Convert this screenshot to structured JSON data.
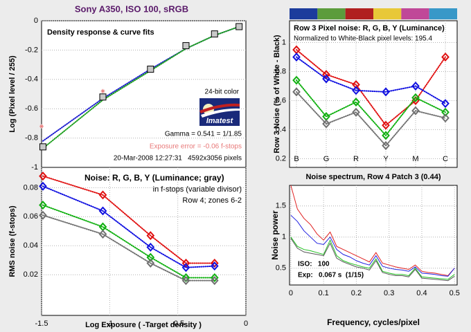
{
  "title": "Sony A350, ISO 100, sRGB",
  "chart_data": [
    {
      "type": "line",
      "title": "Density response & curve fits",
      "ylabel": "Log (Pixel level / 255)",
      "x": [
        -1.49,
        -1.05,
        -0.7,
        -0.44,
        -0.23,
        -0.05
      ],
      "xlim": [
        -1.5,
        0
      ],
      "ylim": [
        -1,
        0
      ],
      "yticks": [
        0,
        -0.2,
        -0.4,
        -0.6,
        -0.8,
        -1
      ],
      "grid": true,
      "annotations": [
        "24-bit color",
        "Gamma = 0.541 = 1/1.85",
        "Exposure error = -0.06 f-stops",
        "20-Mar-2008 12:27:31   4592x3056 pixels"
      ],
      "logo_text": "Imatest",
      "series": [
        {
          "color": "#2020d0",
          "line": "dotted",
          "marker": "none",
          "values": [
            -0.82,
            -0.53,
            -0.33,
            -0.19,
            -0.1,
            -0.04
          ]
        },
        {
          "color": "#20a020",
          "line": "dotted",
          "marker": "none",
          "values": [
            -0.87,
            -0.54,
            -0.34,
            -0.19,
            -0.1,
            -0.04
          ]
        },
        {
          "color": "#e88080",
          "line": "none",
          "marker": "asterisk",
          "x": [
            -1.5,
            -1.05
          ],
          "values": [
            -0.72,
            -0.48
          ]
        },
        {
          "color": "#000000",
          "line": "none",
          "marker": "square",
          "values": [
            -0.86,
            -0.52,
            -0.33,
            -0.17,
            -0.09,
            -0.04
          ]
        }
      ]
    },
    {
      "type": "line",
      "title": "Row 3 Pixel noise: R, G, B, Y (Luminance)",
      "subtitle": "Normalized to White-Black pixel levels: 195.4",
      "ylabel": "Row 3 Noise (% of White - Black)",
      "color_bar": [
        "#1c3c9c",
        "#5c9c3c",
        "#b02020",
        "#e8c838",
        "#c04898",
        "#3898c8"
      ],
      "categories": [
        "B",
        "G",
        "R",
        "Y",
        "M",
        "C"
      ],
      "ylim": [
        0.14,
        1.15
      ],
      "yticks": [
        0.2,
        0.4,
        0.6,
        0.8,
        1
      ],
      "grid": true,
      "series": [
        {
          "color": "#e01010",
          "line": "dotted",
          "marker": "diamond",
          "values": [
            0.95,
            0.78,
            0.71,
            0.43,
            0.6,
            0.9
          ]
        },
        {
          "color": "#1010e0",
          "line": "dotted",
          "marker": "diamond",
          "values": [
            0.9,
            0.75,
            0.67,
            0.66,
            0.7,
            0.58
          ]
        },
        {
          "color": "#10b010",
          "line": "dotted",
          "marker": "diamond",
          "values": [
            0.74,
            0.49,
            0.59,
            0.36,
            0.62,
            0.52
          ]
        },
        {
          "color": "#707070",
          "line": "dotted",
          "marker": "diamond",
          "values": [
            0.66,
            0.44,
            0.52,
            0.29,
            0.53,
            0.48
          ]
        }
      ]
    },
    {
      "type": "line",
      "title": "Noise: R, G, B, Y (Luminance; gray)",
      "annotations": [
        "in f-stops (variable divisor)",
        "Row 4; zones 6-2"
      ],
      "xlabel": "Log Exposure ( -Target density )",
      "ylabel": "RMS noise (f-stops)",
      "x": [
        -1.49,
        -1.05,
        -0.7,
        -0.44,
        -0.23
      ],
      "xlim": [
        -1.5,
        0
      ],
      "ylim": [
        -0.008,
        0.094
      ],
      "xticks": [
        -1.5,
        -1,
        -0.5,
        0
      ],
      "yticks": [
        0.02,
        0.04,
        0.06,
        0.08
      ],
      "grid": true,
      "series": [
        {
          "color": "#e01010",
          "line": "dotted",
          "marker": "diamond",
          "values": [
            0.088,
            0.075,
            0.047,
            0.028,
            0.028
          ]
        },
        {
          "color": "#1010e0",
          "line": "dotted",
          "marker": "diamond",
          "values": [
            0.081,
            0.064,
            0.039,
            0.025,
            0.026
          ]
        },
        {
          "color": "#10b010",
          "line": "dotted",
          "marker": "diamond",
          "values": [
            0.068,
            0.053,
            0.032,
            0.018,
            0.018
          ]
        },
        {
          "color": "#707070",
          "line": "dotted",
          "marker": "diamond",
          "values": [
            0.061,
            0.048,
            0.028,
            0.016,
            0.016
          ]
        }
      ]
    },
    {
      "type": "line",
      "title": "Noise spectrum, Row 4 Patch 3 (0.44)",
      "xlabel": "Frequency, cycles/pixel",
      "ylabel": "Noise power",
      "annotations": [
        "ISO:   100",
        "Exp:   0.067 s  (1/15)"
      ],
      "x": [
        0,
        0.02,
        0.04,
        0.06,
        0.08,
        0.1,
        0.12,
        0.14,
        0.16,
        0.18,
        0.2,
        0.22,
        0.24,
        0.26,
        0.28,
        0.3,
        0.32,
        0.34,
        0.36,
        0.38,
        0.4,
        0.42,
        0.44,
        0.46,
        0.48,
        0.5
      ],
      "xlim": [
        -0.004,
        0.508
      ],
      "ylim": [
        0.23,
        1.83
      ],
      "xticks": [
        0,
        0.1,
        0.2,
        0.3,
        0.4,
        0.5
      ],
      "yticks": [
        0.5,
        1,
        1.5
      ],
      "grid": true,
      "series": [
        {
          "color": "#e02020",
          "line": "solid",
          "marker": "none",
          "values": [
            1.83,
            1.45,
            1.3,
            1.2,
            1.05,
            0.95,
            1.08,
            0.85,
            0.8,
            0.75,
            0.7,
            0.65,
            0.6,
            0.75,
            0.58,
            0.55,
            0.52,
            0.5,
            0.48,
            0.55,
            0.45,
            0.43,
            0.42,
            0.4,
            0.38,
            0.5
          ]
        },
        {
          "color": "#2020e0",
          "line": "solid",
          "marker": "none",
          "values": [
            1.35,
            1.25,
            1.1,
            1.0,
            0.9,
            0.88,
            1.0,
            0.8,
            0.72,
            0.68,
            0.62,
            0.58,
            0.55,
            0.7,
            0.53,
            0.5,
            0.48,
            0.47,
            0.45,
            0.52,
            0.42,
            0.41,
            0.4,
            0.38,
            0.37,
            0.5
          ]
        },
        {
          "color": "#20c020",
          "line": "solid",
          "marker": "none",
          "values": [
            1.0,
            0.85,
            0.8,
            0.78,
            0.75,
            0.72,
            0.95,
            0.7,
            0.62,
            0.58,
            0.55,
            0.52,
            0.5,
            0.65,
            0.45,
            0.42,
            0.4,
            0.4,
            0.38,
            0.5,
            0.36,
            0.35,
            0.34,
            0.33,
            0.32,
            0.4
          ]
        },
        {
          "color": "#555555",
          "line": "solid",
          "marker": "none",
          "values": [
            0.98,
            0.82,
            0.76,
            0.74,
            0.72,
            0.7,
            0.9,
            0.66,
            0.6,
            0.56,
            0.52,
            0.5,
            0.47,
            0.62,
            0.43,
            0.4,
            0.38,
            0.38,
            0.36,
            0.48,
            0.34,
            0.33,
            0.32,
            0.31,
            0.3,
            0.37
          ]
        }
      ]
    }
  ]
}
